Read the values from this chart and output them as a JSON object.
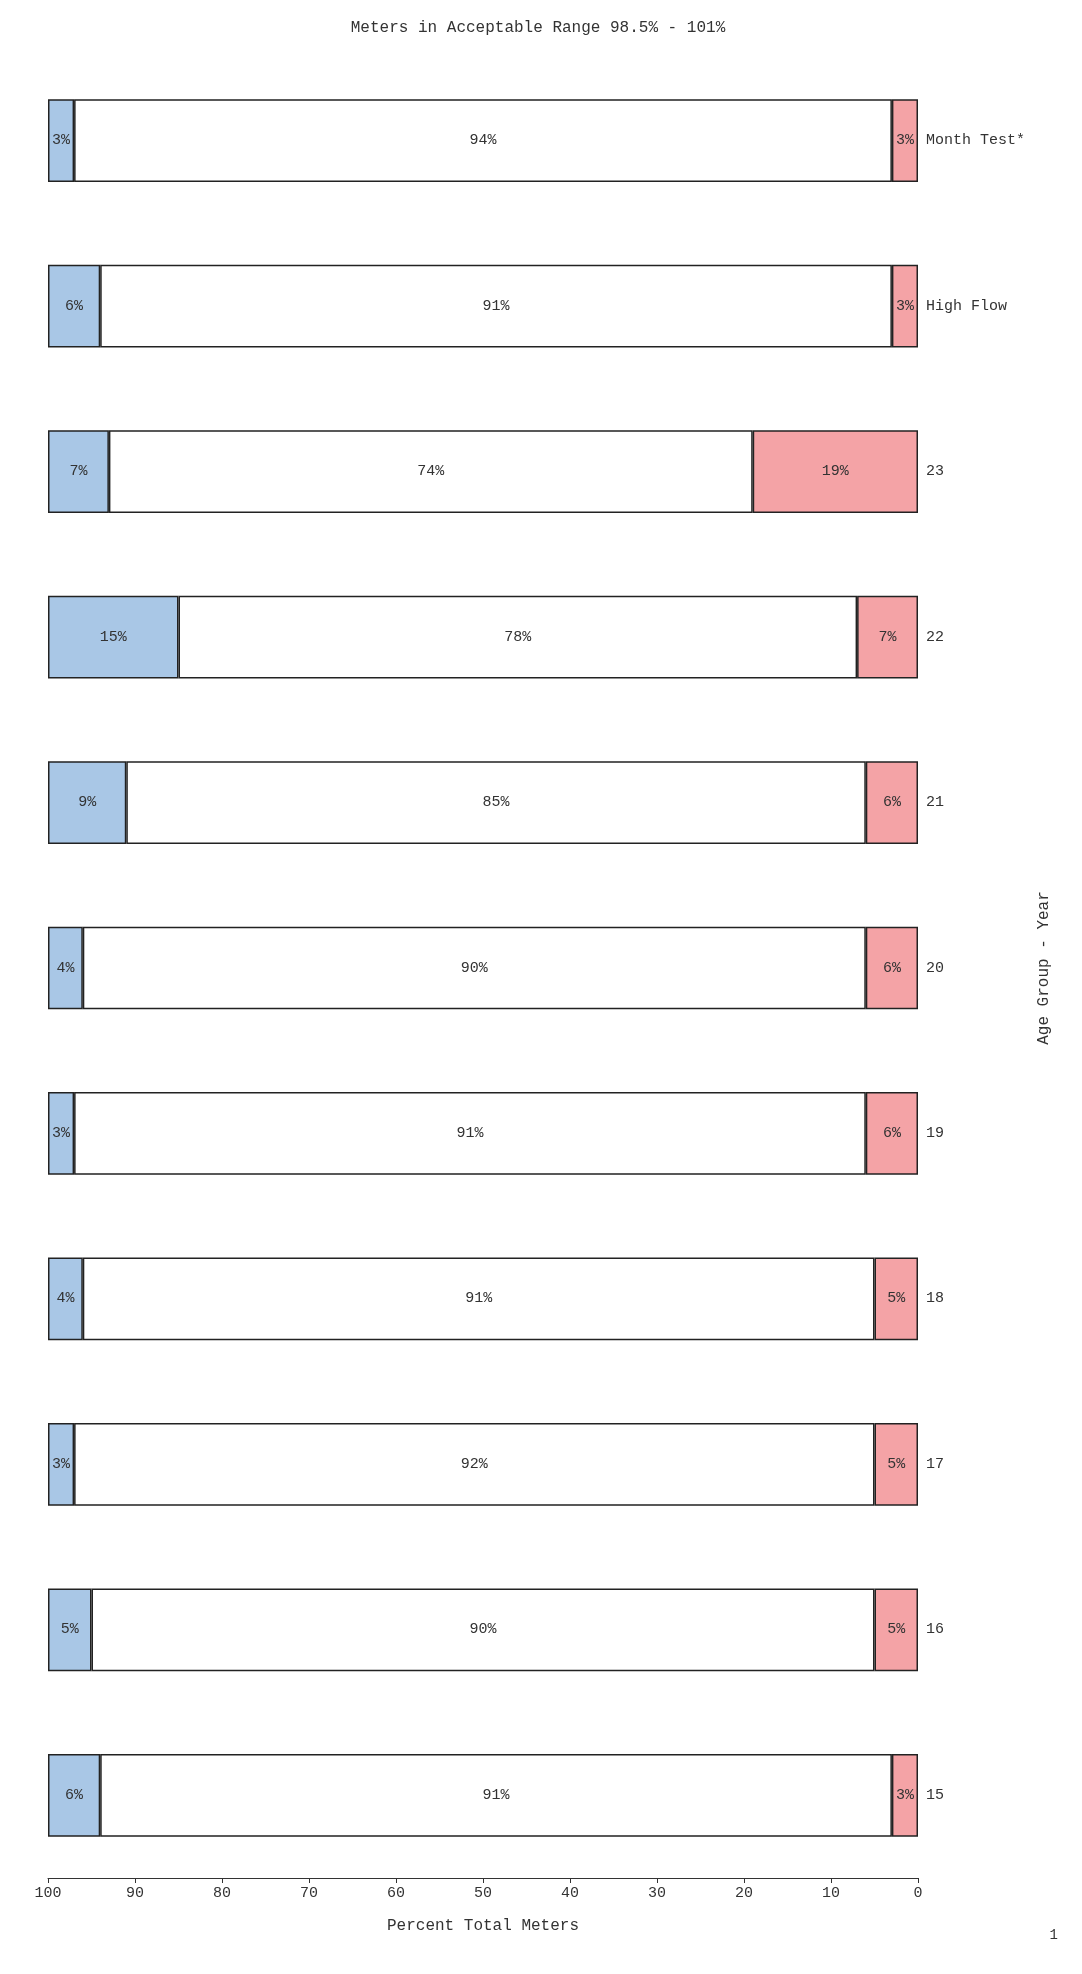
{
  "chart_data": {
    "type": "bar",
    "orientation": "horizontal",
    "stacked": true,
    "xlabel": "Percent Total Meters",
    "ylabel": "Age Group - Year",
    "annotations": [
      "Meters in Acceptable Range 98.5% - 101%",
      "1"
    ],
    "categories": [
      "Month Test*",
      "High Flow",
      "23",
      "22",
      "21",
      "20",
      "19",
      "18",
      "17",
      "16",
      "15"
    ],
    "xlim": [
      100,
      0
    ],
    "xticks": [
      100,
      90,
      80,
      70,
      60,
      50,
      40,
      30,
      20,
      10,
      0
    ],
    "series": [
      {
        "color": "#f4a3a6",
        "values": [
          3,
          3,
          19,
          7,
          6,
          6,
          6,
          5,
          5,
          5,
          3
        ],
        "value_labels": [
          "3%",
          "3%",
          "19%",
          "7%",
          "6%",
          "6%",
          "6%",
          "5%",
          "5%",
          "5%",
          "3%"
        ]
      },
      {
        "color": "#ffffff",
        "values": [
          94,
          91,
          74,
          78,
          85,
          90,
          91,
          91,
          92,
          90,
          91
        ],
        "value_labels": [
          "94%",
          "91%",
          "74%",
          "78%",
          "85%",
          "90%",
          "91%",
          "91%",
          "92%",
          "90%",
          "91%"
        ]
      },
      {
        "color": "#a9c7e6",
        "values": [
          3,
          6,
          7,
          15,
          9,
          4,
          3,
          4,
          3,
          5,
          6
        ],
        "value_labels": [
          "3%",
          "6%",
          "7%",
          "15%",
          "9%",
          "4%",
          "3%",
          "4%",
          "3%",
          "5%",
          "6%"
        ]
      }
    ]
  }
}
